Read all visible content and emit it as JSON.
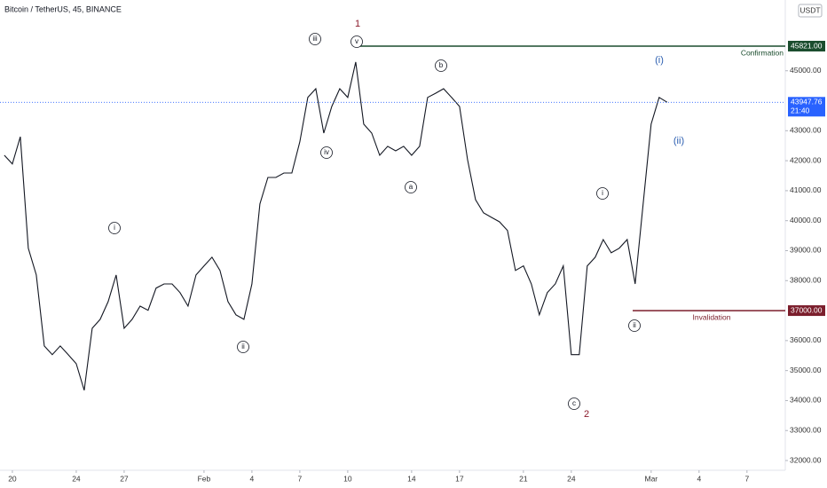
{
  "chart_data": {
    "type": "line",
    "title": "Bitcoin / TetherUS, 45, BINANCE",
    "currency": "USDT",
    "color": "#131722",
    "xlim": [
      -0.55,
      97.8
    ],
    "xticks": [
      {
        "value": 1,
        "label": "20"
      },
      {
        "value": 9,
        "label": "24"
      },
      {
        "value": 15,
        "label": "27"
      },
      {
        "value": 25,
        "label": "Feb"
      },
      {
        "value": 31,
        "label": "4"
      },
      {
        "value": 37,
        "label": "7"
      },
      {
        "value": 43,
        "label": "10"
      },
      {
        "value": 51,
        "label": "14"
      },
      {
        "value": 57,
        "label": "17"
      },
      {
        "value": 65,
        "label": "21"
      },
      {
        "value": 71,
        "label": "24"
      },
      {
        "value": 81,
        "label": "Mar"
      },
      {
        "value": 87,
        "label": "4"
      },
      {
        "value": 93,
        "label": "7"
      }
    ],
    "ylim": [
      31675,
      47360
    ],
    "yticks": [
      {
        "value": 32000,
        "label": "32000.00"
      },
      {
        "value": 33000,
        "label": "33000.00"
      },
      {
        "value": 34000,
        "label": "34000.00"
      },
      {
        "value": 35000,
        "label": "35000.00"
      },
      {
        "value": 36000,
        "label": "36000.00"
      },
      {
        "value": 38000,
        "label": "38000.00"
      },
      {
        "value": 39000,
        "label": "39000.00"
      },
      {
        "value": 40000,
        "label": "40000.00"
      },
      {
        "value": 41000,
        "label": "41000.00"
      },
      {
        "value": 42000,
        "label": "42000.00"
      },
      {
        "value": 43000,
        "label": "43000.00"
      },
      {
        "value": 45000,
        "label": "45000.00"
      }
    ],
    "values": [
      42180,
      41890,
      42800,
      39080,
      38190,
      35820,
      35530,
      35820,
      35530,
      35230,
      34340,
      36410,
      36710,
      37300,
      38190,
      36410,
      36710,
      37150,
      37010,
      37750,
      37890,
      37890,
      37600,
      37150,
      38190,
      38490,
      38780,
      38340,
      37300,
      36860,
      36710,
      37890,
      40560,
      41440,
      41440,
      41590,
      41590,
      42630,
      44110,
      44400,
      42920,
      43810,
      44400,
      44110,
      45290,
      43220,
      42920,
      42180,
      42480,
      42330,
      42480,
      42180,
      42480,
      44110,
      44250,
      44400,
      44110,
      43810,
      42040,
      40700,
      40260,
      40110,
      39960,
      39670,
      38340,
      38490,
      37890,
      36860,
      37600,
      37890,
      38490,
      35530,
      35530,
      38490,
      38780,
      39370,
      38930,
      39080,
      39370,
      37890,
      40560,
      43220,
      44110,
      43950
    ],
    "levels": [
      {
        "name": "Confirmation",
        "value": 45821,
        "label": "45821.00",
        "color": "#1b4d2e"
      },
      {
        "name": "Invalidation",
        "value": 37000,
        "label": "37000.00",
        "color": "#7b1e2c"
      }
    ],
    "last": {
      "value": 43947.76,
      "label": "43947.76",
      "countdown": "21:40",
      "color": "#2962ff"
    },
    "annotations": [
      {
        "text": "1",
        "color": "#8b1a2b",
        "circled": false
      },
      {
        "text": "iii",
        "color": "#131722",
        "circled": true
      },
      {
        "text": "v",
        "color": "#131722",
        "circled": true
      },
      {
        "text": "b",
        "color": "#131722",
        "circled": true
      },
      {
        "text": "(i)",
        "color": "#2a5db0",
        "circled": false
      },
      {
        "text": "(ii)",
        "color": "#2a5db0",
        "circled": false
      },
      {
        "text": "iv",
        "color": "#131722",
        "circled": true
      },
      {
        "text": "a",
        "color": "#131722",
        "circled": true
      },
      {
        "text": "i",
        "color": "#131722",
        "circled": true
      },
      {
        "text": "i",
        "color": "#131722",
        "circled": true
      },
      {
        "text": "ii",
        "color": "#131722",
        "circled": true
      },
      {
        "text": "ii",
        "color": "#131722",
        "circled": true
      },
      {
        "text": "c",
        "color": "#131722",
        "circled": true
      },
      {
        "text": "2",
        "color": "#8b1a2b",
        "circled": false
      }
    ]
  }
}
